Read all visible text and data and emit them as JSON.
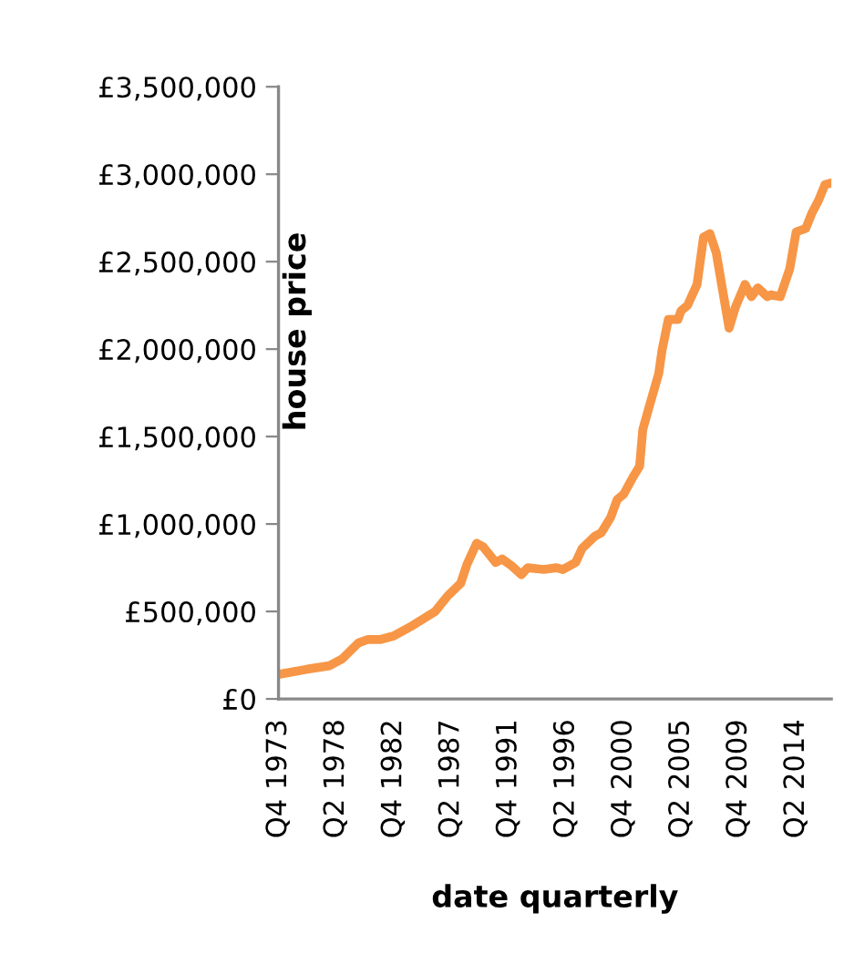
{
  "chart_data": {
    "type": "line",
    "xlabel": "date quarterly",
    "ylabel": "house price",
    "x": [
      "1973-10",
      "1976-01",
      "1977-10",
      "1978-10",
      "1980-01",
      "1980-10",
      "1981-10",
      "1982-10",
      "1984-04",
      "1986-01",
      "1987-01",
      "1988-01",
      "1988-07",
      "1989-04",
      "1989-10",
      "1990-10",
      "1991-04",
      "1992-01",
      "1992-10",
      "1993-04",
      "1994-07",
      "1995-07",
      "1996-01",
      "1997-01",
      "1997-07",
      "1998-07",
      "1999-01",
      "1999-10",
      "2000-04",
      "2000-10",
      "2001-07",
      "2002-01",
      "2002-04",
      "2002-10",
      "2003-07",
      "2003-10",
      "2004-04",
      "2005-01",
      "2005-04",
      "2005-10",
      "2006-07",
      "2007-01",
      "2007-07",
      "2008-01",
      "2009-01",
      "2009-07",
      "2010-04",
      "2010-10",
      "2011-04",
      "2012-01",
      "2012-04",
      "2013-01",
      "2013-10",
      "2014-04",
      "2015-01",
      "2015-07",
      "2016-01",
      "2016-07",
      "2017-01"
    ],
    "series": [
      {
        "color": "#f79646",
        "values": [
          140000,
          170000,
          190000,
          230000,
          320000,
          340000,
          340000,
          360000,
          420000,
          500000,
          590000,
          660000,
          770000,
          890000,
          870000,
          780000,
          800000,
          760000,
          710000,
          750000,
          740000,
          750000,
          740000,
          780000,
          860000,
          930000,
          950000,
          1040000,
          1140000,
          1170000,
          1270000,
          1330000,
          1540000,
          1670000,
          1860000,
          1990000,
          2170000,
          2170000,
          2220000,
          2250000,
          2370000,
          2640000,
          2660000,
          2550000,
          2120000,
          2240000,
          2370000,
          2300000,
          2350000,
          2300000,
          2310000,
          2300000,
          2460000,
          2670000,
          2690000,
          2780000,
          2850000,
          2940000,
          2950000
        ]
      }
    ],
    "xlim": [
      "1973-10",
      "2017-01"
    ],
    "xticks": [
      {
        "value": "1973-10",
        "label": "Q4 1973"
      },
      {
        "value": "1978-04",
        "label": "Q2 1978"
      },
      {
        "value": "1982-10",
        "label": "Q4 1982"
      },
      {
        "value": "1987-04",
        "label": "Q2 1987"
      },
      {
        "value": "1991-10",
        "label": "Q4 1991"
      },
      {
        "value": "1996-04",
        "label": "Q2 1996"
      },
      {
        "value": "2000-10",
        "label": "Q4 2000"
      },
      {
        "value": "2005-04",
        "label": "Q2 2005"
      },
      {
        "value": "2009-10",
        "label": "Q4 2009"
      },
      {
        "value": "2014-04",
        "label": "Q2 2014"
      }
    ],
    "ylim": [
      0,
      3500000
    ],
    "yticks": [
      {
        "value": 0,
        "label": "£0"
      },
      {
        "value": 500000,
        "label": "£500,000"
      },
      {
        "value": 1000000,
        "label": "£1,000,000"
      },
      {
        "value": 1500000,
        "label": "£1,500,000"
      },
      {
        "value": 2000000,
        "label": "£2,000,000"
      },
      {
        "value": 2500000,
        "label": "£2,500,000"
      },
      {
        "value": 3000000,
        "label": "£3,000,000"
      },
      {
        "value": 3500000,
        "label": "£3,500,000"
      }
    ],
    "grid": false,
    "legend": false,
    "marker": "none",
    "line_style": "solid"
  }
}
